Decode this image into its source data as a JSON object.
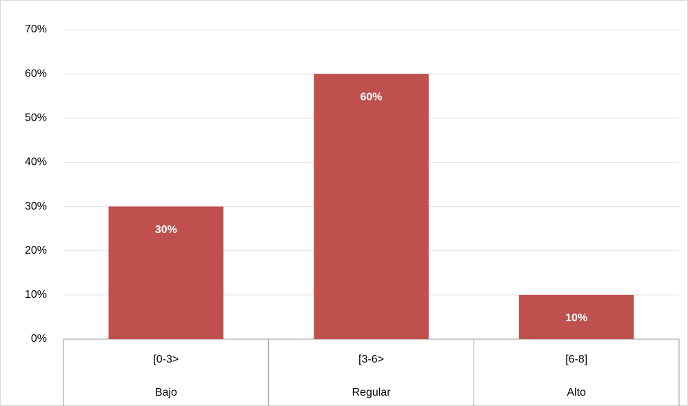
{
  "chart_data": {
    "type": "bar",
    "categories": [
      "[0-3>",
      "[3-6>",
      "[6-8]"
    ],
    "category_groups": [
      "Bajo",
      "Regular",
      "Alto"
    ],
    "values": [
      30,
      60,
      10
    ],
    "value_labels": [
      "30%",
      "60%",
      "10%"
    ],
    "color": "#c0504d",
    "ylim": [
      0,
      70
    ],
    "yticks": [
      {
        "value": 0,
        "label": "0%"
      },
      {
        "value": 10,
        "label": "10%"
      },
      {
        "value": 20,
        "label": "20%"
      },
      {
        "value": 30,
        "label": "30%"
      },
      {
        "value": 40,
        "label": "40%"
      },
      {
        "value": 50,
        "label": "50%"
      },
      {
        "value": 60,
        "label": "60%"
      },
      {
        "value": 70,
        "label": "70%"
      }
    ],
    "grid": true
  }
}
